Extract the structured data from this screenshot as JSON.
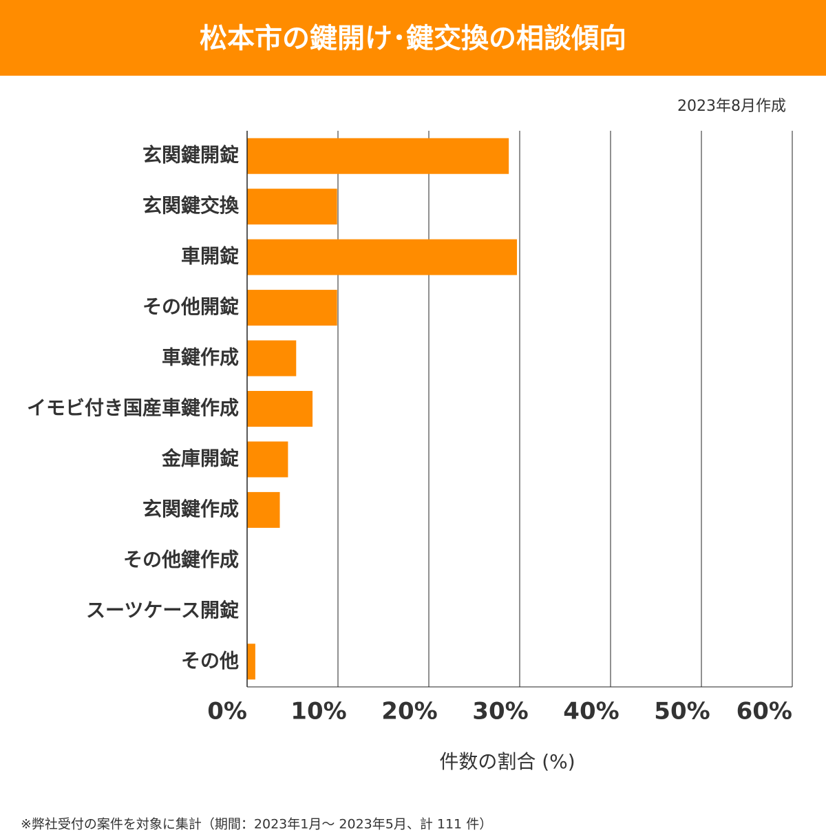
{
  "chart_data": {
    "type": "bar",
    "orientation": "horizontal",
    "title": "松本市の鍵開け･鍵交換の相談傾向",
    "note": "2023年8月作成",
    "xlabel": "件数の割合 (%)",
    "footnote": "※弊社受付の案件を対象に集計（期間：2023年1月～ 2023年5月、計 111 件）",
    "categories": [
      "玄関鍵開錠",
      "玄関鍵交換",
      "車開錠",
      "その他開錠",
      "車鍵作成",
      "イモビ付き国産車鍵作成",
      "金庫開錠",
      "玄関鍵作成",
      "その他鍵作成",
      "スーツケース開錠",
      "その他"
    ],
    "values": [
      28.8,
      9.9,
      29.7,
      9.9,
      5.4,
      7.2,
      4.5,
      3.6,
      0,
      0,
      0.9
    ],
    "color": "#ff8c00",
    "xlim": [
      0,
      60
    ],
    "xticks": [
      {
        "value": 0,
        "label": "0%"
      },
      {
        "value": 10,
        "label": "10%"
      },
      {
        "value": 20,
        "label": "20%"
      },
      {
        "value": 30,
        "label": "30%"
      },
      {
        "value": 40,
        "label": "40%"
      },
      {
        "value": 50,
        "label": "50%"
      },
      {
        "value": 60,
        "label": "60%"
      }
    ],
    "grid": true
  }
}
